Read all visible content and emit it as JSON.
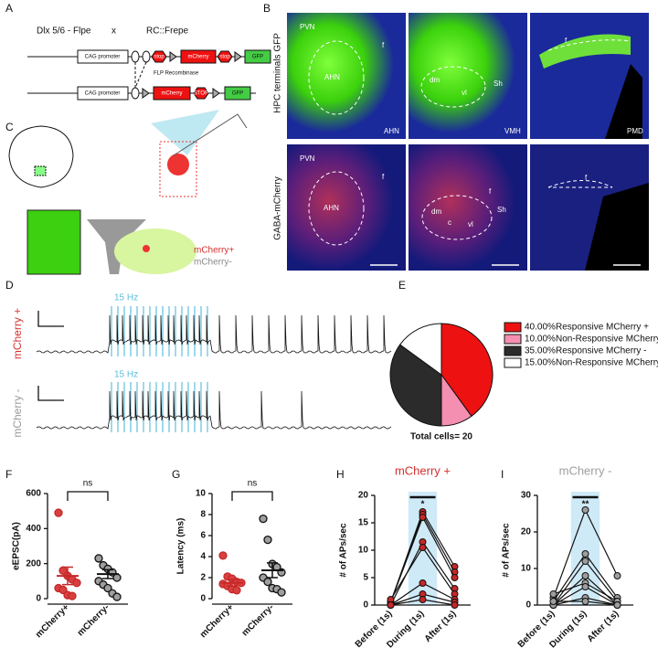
{
  "panels": {
    "labels": [
      "A",
      "B",
      "C",
      "D",
      "E",
      "F",
      "G",
      "H",
      "I"
    ],
    "A": {
      "cross": [
        "Dlx 5/6 - Flpe",
        "x",
        "RC::Frepe"
      ],
      "construct_before": [
        "CAG promoter",
        "stop",
        "mCherry",
        "stop",
        "GFP"
      ],
      "recombinase": "FLP Recombinase",
      "construct_after": [
        "CAG promoter",
        "mCherry",
        "STOP",
        "GFP"
      ]
    },
    "B": {
      "row_labels": [
        "HPC terminals GFP",
        "GABA-mCherry"
      ],
      "top": [
        [
          "PVN",
          "AHN",
          "f",
          "AHN"
        ],
        [
          "dm",
          "vl",
          "Sh",
          "VMH"
        ],
        [
          "f",
          "PMD"
        ]
      ],
      "bottom": [
        [
          "PVN",
          "AHN",
          "f"
        ],
        [
          "dm",
          "c",
          "vl",
          "f",
          "Sh"
        ],
        [
          "f"
        ]
      ]
    },
    "C": {
      "cells": [
        "mCherry+",
        "mCherry-"
      ]
    },
    "D": {
      "traces": [
        "mCherry +",
        "mCherry -"
      ],
      "stim": "15 Hz"
    }
  },
  "chart_data": [
    {
      "type": "pie",
      "total_label": "Total cells= 20",
      "categories": [
        "Responsive MCherry +",
        "Non-Responsive MCherry",
        "Responsive MCherry -",
        "Non-Responsive MCherry"
      ],
      "values": [
        40,
        10,
        35,
        15
      ],
      "value_labels": [
        "40.00%",
        "10.00%",
        "35.00%",
        "15.00%"
      ],
      "colors": [
        "#ee1111",
        "#f48fb1",
        "#2b2b2b",
        "#ffffff"
      ]
    },
    {
      "type": "strip",
      "ylabel": "eEPSC(pA)",
      "annotation": "ns",
      "categories": [
        "mCherry+",
        "mCherry-"
      ],
      "series": [
        {
          "color": "#c62828",
          "fill": "#d84040",
          "values": [
            490,
            160,
            130,
            110,
            90,
            60,
            50,
            20,
            15
          ]
        },
        {
          "color": "#111111",
          "fill": "#9e9e9e",
          "values": [
            230,
            190,
            170,
            150,
            120,
            100,
            80,
            60,
            30,
            10
          ]
        }
      ],
      "means": [
        130,
        140
      ],
      "sems": [
        50,
        25
      ],
      "ylim": [
        0,
        600
      ],
      "yticks": [
        0,
        200,
        400,
        600
      ]
    },
    {
      "type": "strip",
      "ylabel": "Latency (ms)",
      "annotation": "ns",
      "categories": [
        "mCherry+",
        "mCherry-"
      ],
      "series": [
        {
          "color": "#c62828",
          "fill": "#d84040",
          "values": [
            4.1,
            2.1,
            1.9,
            1.6,
            1.5,
            1.4,
            1.2,
            0.9,
            0.8
          ]
        },
        {
          "color": "#111111",
          "fill": "#9e9e9e",
          "values": [
            7.6,
            5.6,
            3.3,
            3.0,
            2.5,
            2.0,
            1.6,
            1.0,
            0.9,
            0.6
          ]
        }
      ],
      "means": [
        1.5,
        2.7
      ],
      "sems": [
        0.3,
        0.7
      ],
      "ylim": [
        0,
        10
      ],
      "yticks": [
        0,
        2,
        4,
        6,
        8,
        10
      ]
    },
    {
      "type": "line",
      "title": "mCherry +",
      "title_color": "#d32f2f",
      "ylabel": "# of APs/sec",
      "annotation": "*",
      "categories": [
        "Before (1s)",
        "During (1s)",
        "After (1s)"
      ],
      "color": "#111111",
      "fill": "#c62828",
      "series": [
        {
          "values": [
            0.5,
            17,
            7
          ]
        },
        {
          "values": [
            0.5,
            16.5,
            6
          ]
        },
        {
          "values": [
            0.5,
            16,
            5
          ]
        },
        {
          "values": [
            0,
            11.5,
            3
          ]
        },
        {
          "values": [
            1,
            10.5,
            2
          ]
        },
        {
          "values": [
            0,
            4,
            1
          ]
        },
        {
          "values": [
            0,
            2,
            0.5
          ]
        },
        {
          "values": [
            0,
            1,
            0
          ]
        }
      ],
      "ylim": [
        0,
        20
      ],
      "yticks": [
        0,
        5,
        10,
        15,
        20
      ]
    },
    {
      "type": "line",
      "title": "mCherry -",
      "title_color": "#9e9e9e",
      "ylabel": "# of APs/sec",
      "annotation": "**",
      "categories": [
        "Before (1s)",
        "During (1s)",
        "After (1s)"
      ],
      "color": "#111111",
      "fill": "#9e9e9e",
      "series": [
        {
          "values": [
            2,
            26,
            8
          ]
        },
        {
          "values": [
            1,
            14,
            2
          ]
        },
        {
          "values": [
            0,
            12,
            1
          ]
        },
        {
          "values": [
            0,
            8,
            0
          ]
        },
        {
          "values": [
            3,
            6,
            1
          ]
        },
        {
          "values": [
            0,
            5,
            0
          ]
        },
        {
          "values": [
            0,
            2,
            0
          ]
        },
        {
          "values": [
            1,
            1,
            0
          ]
        }
      ],
      "ylim": [
        0,
        30
      ],
      "yticks": [
        0,
        10,
        20,
        30
      ]
    }
  ]
}
